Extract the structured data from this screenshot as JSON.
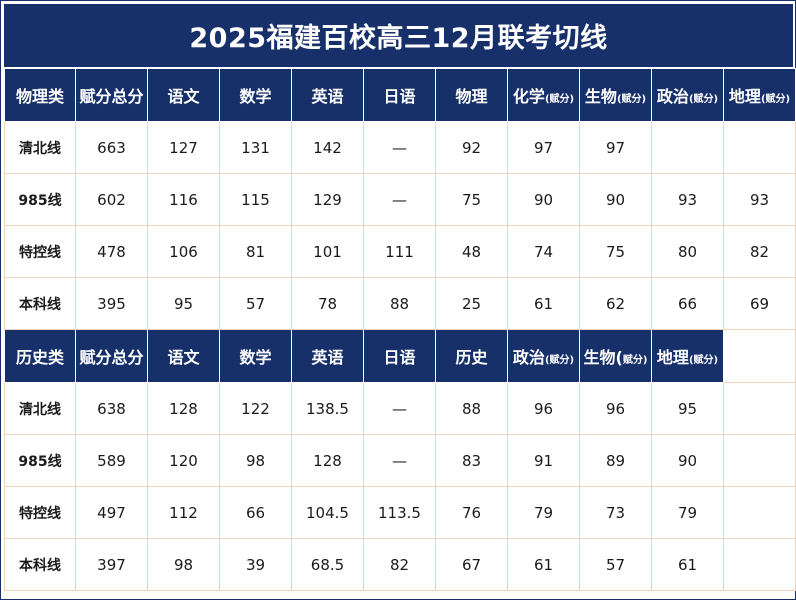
{
  "title": "2025福建百校高三12月联考切线",
  "physics": {
    "headers": [
      {
        "main": "物理类",
        "sub": ""
      },
      {
        "main": "赋分总分",
        "sub": ""
      },
      {
        "main": "语文",
        "sub": ""
      },
      {
        "main": "数学",
        "sub": ""
      },
      {
        "main": "英语",
        "sub": ""
      },
      {
        "main": "日语",
        "sub": ""
      },
      {
        "main": "物理",
        "sub": ""
      },
      {
        "main": "化学",
        "sub": "(赋分)"
      },
      {
        "main": "生物",
        "sub": "(赋分)"
      },
      {
        "main": "政治",
        "sub": "(赋分)"
      },
      {
        "main": "地理",
        "sub": "(赋分)"
      }
    ],
    "rows": [
      {
        "label": "清北线",
        "cells": [
          "663",
          "127",
          "131",
          "142",
          "—",
          "92",
          "97",
          "97",
          "",
          ""
        ]
      },
      {
        "label": "985线",
        "cells": [
          "602",
          "116",
          "115",
          "129",
          "—",
          "75",
          "90",
          "90",
          "93",
          "93"
        ]
      },
      {
        "label": "特控线",
        "cells": [
          "478",
          "106",
          "81",
          "101",
          "111",
          "48",
          "74",
          "75",
          "80",
          "82"
        ]
      },
      {
        "label": "本科线",
        "cells": [
          "395",
          "95",
          "57",
          "78",
          "88",
          "25",
          "61",
          "62",
          "66",
          "69"
        ]
      }
    ]
  },
  "history": {
    "headers": [
      {
        "main": "历史类",
        "sub": ""
      },
      {
        "main": "赋分总分",
        "sub": ""
      },
      {
        "main": "语文",
        "sub": ""
      },
      {
        "main": "数学",
        "sub": ""
      },
      {
        "main": "英语",
        "sub": ""
      },
      {
        "main": "日语",
        "sub": ""
      },
      {
        "main": "历史",
        "sub": ""
      },
      {
        "main": "政治",
        "sub": "(赋分)"
      },
      {
        "main": "生物(",
        "sub": "赋分)"
      },
      {
        "main": "地理",
        "sub": "(赋分)"
      }
    ],
    "rows": [
      {
        "label": "清北线",
        "cells": [
          "638",
          "128",
          "122",
          "138.5",
          "—",
          "88",
          "96",
          "96",
          "95"
        ]
      },
      {
        "label": "985线",
        "cells": [
          "589",
          "120",
          "98",
          "128",
          "—",
          "83",
          "91",
          "89",
          "90"
        ]
      },
      {
        "label": "特控线",
        "cells": [
          "497",
          "112",
          "66",
          "104.5",
          "113.5",
          "76",
          "79",
          "73",
          "79"
        ]
      },
      {
        "label": "本科线",
        "cells": [
          "397",
          "98",
          "39",
          "68.5",
          "82",
          "67",
          "61",
          "57",
          "61"
        ]
      }
    ]
  }
}
